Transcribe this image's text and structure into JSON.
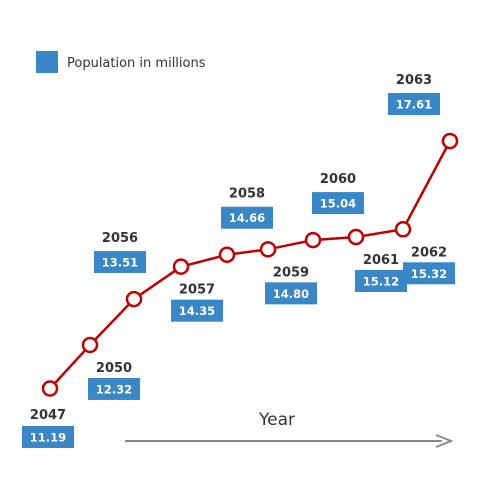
{
  "chart_data": {
    "type": "line",
    "x": [
      "2047",
      "2050",
      "2056",
      "2057",
      "2058",
      "2059",
      "2060",
      "2061",
      "2062",
      "2063"
    ],
    "series": [
      {
        "name": "Population in millions",
        "values": [
          11.19,
          12.32,
          13.51,
          14.35,
          14.66,
          14.8,
          15.04,
          15.12,
          15.32,
          17.61
        ]
      }
    ],
    "value_labels": [
      "11.19",
      "12.32",
      "13.51",
      "14.35",
      "14.66",
      "14.80",
      "15.04",
      "15.12",
      "15.32",
      "17.61"
    ],
    "xlabel": "Year",
    "ylabel": "",
    "ylim": [
      10.97,
      17.61
    ],
    "legend_position": "top-left",
    "grid": false
  },
  "colors": {
    "line": "#c00000",
    "label_box": "#3a87c7",
    "year_text": "#333333",
    "arrow": "#8a8a8a"
  }
}
